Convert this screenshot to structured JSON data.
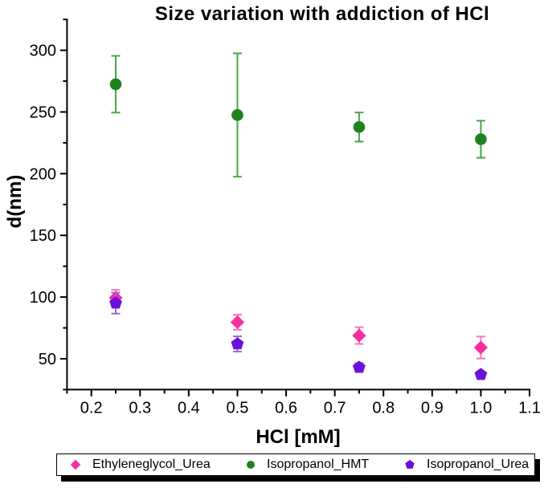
{
  "chart_data": {
    "type": "scatter",
    "title": "Size variation with addiction of HCl",
    "xlabel": "HCl [mM]",
    "ylabel": "d(nm)",
    "xlim": [
      0.15,
      1.1
    ],
    "ylim": [
      25,
      325
    ],
    "grid": false,
    "legend_position": "bottom",
    "x_axis": {
      "tick_values": [
        0.2,
        0.3,
        0.4,
        0.5,
        0.6,
        0.7,
        0.8,
        0.9,
        1.0,
        1.1
      ],
      "tick_labels": [
        "0.2",
        "0.3",
        "0.4",
        "0.5",
        "0.6",
        "0.7",
        "0.8",
        "0.9",
        "1.0",
        "1.1"
      ],
      "minor_tick_values": [
        0.15,
        0.25,
        0.35,
        0.45,
        0.55,
        0.65,
        0.75,
        0.85,
        0.95,
        1.05
      ]
    },
    "y_axis": {
      "tick_values": [
        50,
        100,
        150,
        200,
        250,
        300
      ],
      "tick_labels": [
        "50",
        "100",
        "150",
        "200",
        "250",
        "300"
      ],
      "minor_tick_values": [
        25,
        75,
        125,
        175,
        225,
        275,
        325
      ]
    },
    "series": [
      {
        "name": "Ethyleneglycol_Urea",
        "marker": "diamond",
        "color": "#f72e9e",
        "error_bar_color": "#f973b8",
        "x": [
          0.25,
          0.5,
          0.75,
          1.0
        ],
        "y": [
          99.4,
          79.6,
          68.8,
          59.1
        ],
        "yerr": [
          6.4,
          6.1,
          6.8,
          8.9
        ]
      },
      {
        "name": "Isopropanol_HMT",
        "marker": "circle",
        "color": "#1e821e",
        "error_bar_color": "#46a746",
        "x": [
          0.25,
          0.5,
          0.75,
          1.0
        ],
        "y": [
          272.5,
          247.5,
          237.8,
          227.9
        ],
        "yerr": [
          23,
          50,
          11.8,
          15
        ]
      },
      {
        "name": "Isopropanol_Urea",
        "marker": "pentagon",
        "color": "#6c10d9",
        "error_bar_color": "#9668de",
        "x": [
          0.25,
          0.5,
          0.75,
          1.0
        ],
        "y": [
          95.1,
          62.0,
          43.0,
          37.2
        ],
        "yerr": [
          8.5,
          6.2,
          3.5,
          2.0
        ]
      }
    ],
    "axis_color": "#000000",
    "background_color": "#ffffff"
  }
}
